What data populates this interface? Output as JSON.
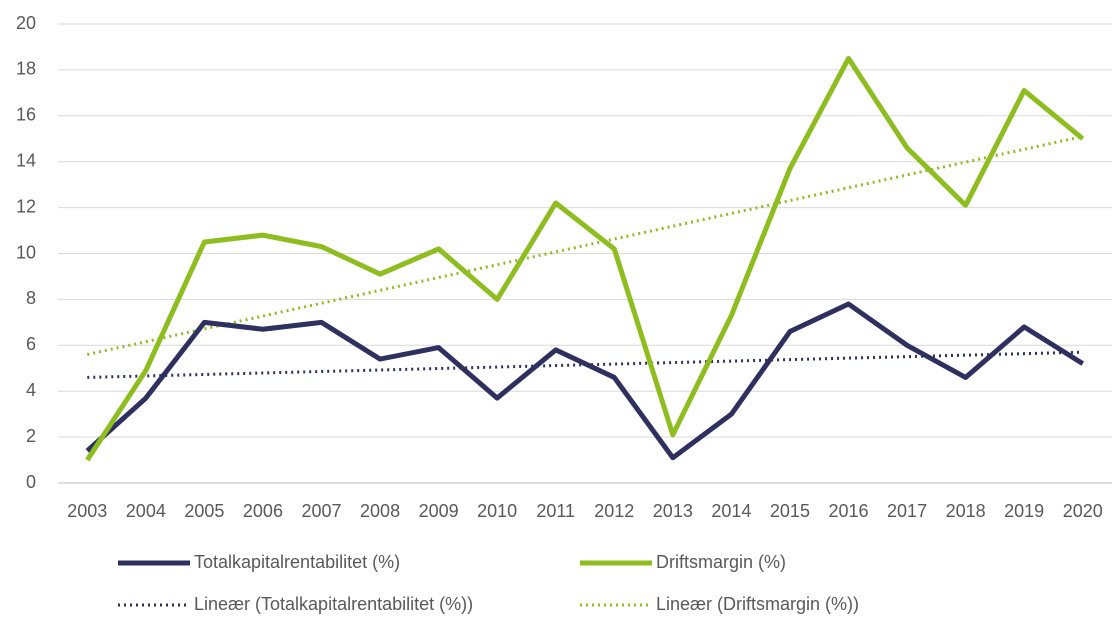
{
  "chart_data": {
    "type": "line",
    "categories": [
      "2003",
      "2004",
      "2005",
      "2006",
      "2007",
      "2008",
      "2009",
      "2010",
      "2011",
      "2012",
      "2013",
      "2014",
      "2015",
      "2016",
      "2017",
      "2018",
      "2019",
      "2020"
    ],
    "series": [
      {
        "name": "Totalkapitalrentabilitet (%)",
        "color": "#2e3160",
        "values": [
          1.4,
          3.7,
          7.0,
          6.7,
          7.0,
          5.4,
          5.9,
          3.7,
          5.8,
          4.6,
          1.1,
          3.0,
          6.6,
          7.8,
          6.0,
          4.6,
          6.8,
          5.2
        ]
      },
      {
        "name": "Driftsmargin (%)",
        "color": "#8dbd1e",
        "values": [
          1.0,
          4.9,
          10.5,
          10.8,
          10.3,
          9.1,
          10.2,
          8.0,
          12.2,
          10.2,
          2.1,
          7.3,
          13.7,
          18.5,
          14.6,
          12.1,
          17.1,
          15.0
        ]
      }
    ],
    "trendlines": [
      {
        "name": "Lineær (Totalkapitalrentabilitet (%))",
        "color": "#2e3160",
        "values": [
          4.6,
          5.7
        ]
      },
      {
        "name": "Lineær (Driftsmargin (%))",
        "color": "#8dbd1e",
        "values": [
          5.6,
          15.1
        ]
      }
    ],
    "ylim": [
      0,
      20
    ],
    "yticks": [
      0,
      2,
      4,
      6,
      8,
      10,
      12,
      14,
      16,
      18,
      20
    ],
    "grid": true,
    "legend": "bottom"
  }
}
